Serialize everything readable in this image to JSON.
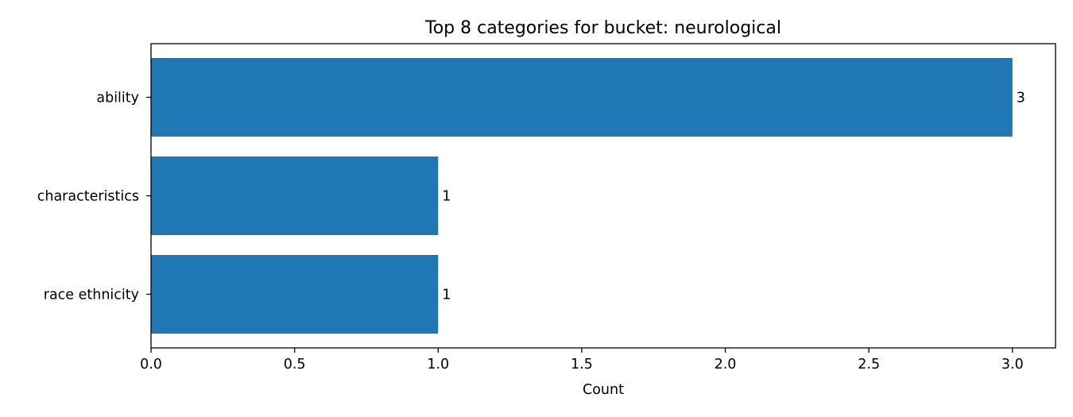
{
  "chart_data": {
    "type": "bar",
    "orientation": "horizontal",
    "title": "Top 8 categories for bucket: neurological",
    "xlabel": "Count",
    "ylabel": "",
    "categories": [
      "ability",
      "characteristics",
      "race ethnicity"
    ],
    "values": [
      3,
      1,
      1
    ],
    "data_labels": [
      "3",
      "1",
      "1"
    ],
    "xlim": [
      0,
      3.15
    ],
    "xticks": [
      0.0,
      0.5,
      1.0,
      1.5,
      2.0,
      2.5,
      3.0
    ],
    "xtick_labels": [
      "0.0",
      "0.5",
      "1.0",
      "1.5",
      "2.0",
      "2.5",
      "3.0"
    ],
    "bar_color": "#1f77b4",
    "grid": false,
    "legend": "none"
  }
}
